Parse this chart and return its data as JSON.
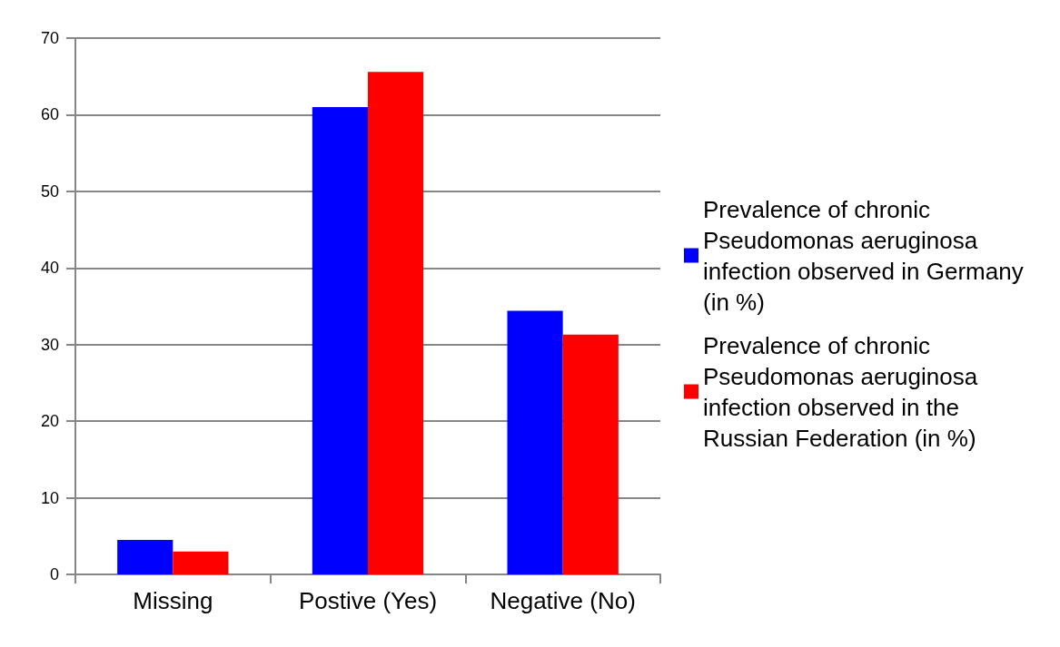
{
  "chart_data": {
    "type": "bar",
    "categories": [
      "Missing",
      "Postive (Yes)",
      "Negative (No)"
    ],
    "series": [
      {
        "name": "Prevalence of chronic Pseudomonas aeruginosa infection observed in Germany (in %)",
        "color": "#0000ff",
        "values": [
          4.5,
          61.0,
          34.4
        ]
      },
      {
        "name": "Prevalence of chronic Pseudomonas aeruginosa infection observed in the Russian Federation (in %)",
        "color": "#ff0000",
        "values": [
          3.0,
          65.6,
          31.3
        ]
      }
    ],
    "ylim": [
      0,
      70
    ],
    "yticks": [
      0,
      10,
      20,
      30,
      40,
      50,
      60,
      70
    ],
    "grid": "y",
    "legend": "right"
  }
}
